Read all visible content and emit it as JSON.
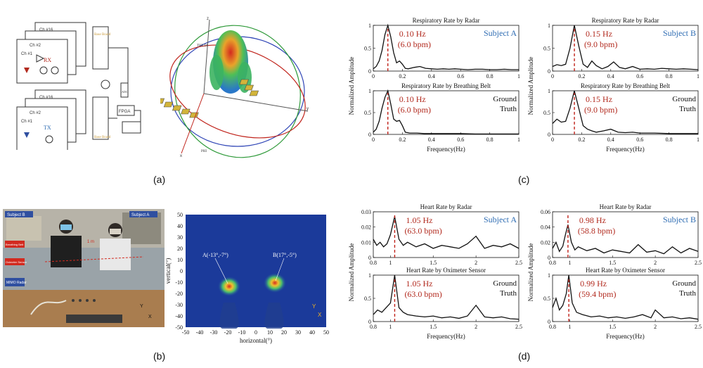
{
  "labels": {
    "a": "(a)",
    "b": "(b)",
    "c": "(c)",
    "d": "(d)"
  },
  "diagram_a": {
    "rx_label": "RX",
    "tx_label": "TX",
    "ch_top": "Ch #16",
    "ch_2": "Ch #2",
    "ch_1": "Ch #1",
    "base_board": "Base Board",
    "fpga": "FPGA",
    "adc": "ADC",
    "antenna_labels": {
      "z": "z",
      "x": "x",
      "y": "y",
      "theta": "THETA",
      "phi": "PHI"
    }
  },
  "photo_b": {
    "subject_b_tag": "Subject B",
    "subject_a_tag": "Subject A",
    "breathing_belt": "Breathing Belt",
    "oximeter": "Oximeter Sensor",
    "mimo": "MIMO Radar",
    "distance": "1 m",
    "axis_y": "Y",
    "axis_x": "X"
  },
  "heatmap_b": {
    "xlabel": "horizontal(°)",
    "ylabel": "vertical(°)",
    "x_ticks": [
      "-50",
      "-40",
      "-30",
      "-20",
      "-10",
      "0",
      "10",
      "20",
      "30",
      "40",
      "50"
    ],
    "y_ticks": [
      "50",
      "40",
      "30",
      "20",
      "10",
      "0",
      "-10",
      "-20",
      "-30",
      "-40",
      "-50"
    ],
    "point_a": "A(-13°,-7°)",
    "point_b": "B(17°,-5°)",
    "axis_y": "Y",
    "axis_x": "X"
  },
  "shared": {
    "ylabel": "Normalized Amplitude",
    "xlabel": "Frequency(Hz)",
    "subject_a": "Subject A",
    "subject_b": "Subject B",
    "ground": "Ground",
    "truth": "Truth"
  },
  "colors": {
    "signal": "#111111",
    "marker": "#c0231b",
    "annotation": "#b22a1e",
    "subject": "#2f6db3"
  },
  "chart_data": [
    {
      "type": "line",
      "title": "Respiratory Rate by Radar",
      "xlim": [
        0,
        1
      ],
      "ylim": [
        0,
        1
      ],
      "xticks": [
        0,
        0.2,
        0.4,
        0.6,
        0.8,
        1
      ],
      "xtick_labels": [
        "0",
        "0.2",
        "0.4",
        "0.6",
        "0.8",
        "1"
      ],
      "yticks": [
        0,
        0.5,
        1
      ],
      "ytick_labels": [
        "0",
        "0.5",
        "1"
      ],
      "peak_x": 0.1,
      "annotation_line1": "0.10 Hz",
      "annotation_line2": "(6.0 bpm)",
      "tag": "Subject A",
      "x": [
        0,
        0.02,
        0.04,
        0.06,
        0.08,
        0.1,
        0.12,
        0.14,
        0.16,
        0.18,
        0.2,
        0.22,
        0.24,
        0.28,
        0.32,
        0.36,
        0.4,
        0.44,
        0.48,
        0.52,
        0.56,
        0.6,
        0.65,
        0.7,
        0.75,
        0.8,
        0.85,
        0.9,
        0.95,
        1
      ],
      "y": [
        0.05,
        0.1,
        0.22,
        0.45,
        0.8,
        1,
        0.75,
        0.4,
        0.18,
        0.22,
        0.15,
        0.06,
        0.05,
        0.08,
        0.1,
        0.06,
        0.05,
        0.04,
        0.05,
        0.04,
        0.05,
        0.04,
        0.03,
        0.04,
        0.04,
        0.03,
        0.03,
        0.04,
        0.03,
        0.03
      ]
    },
    {
      "type": "line",
      "title": "Respiratory Rate by Radar",
      "xlim": [
        0,
        1
      ],
      "ylim": [
        0,
        1
      ],
      "xticks": [
        0,
        0.2,
        0.4,
        0.6,
        0.8,
        1
      ],
      "xtick_labels": [
        "0",
        "0.2",
        "0.4",
        "0.6",
        "0.8",
        "1"
      ],
      "yticks": [
        0,
        0.5,
        1
      ],
      "ytick_labels": [
        "0",
        "0.5",
        "1"
      ],
      "peak_x": 0.15,
      "annotation_line1": "0.15 Hz",
      "annotation_line2": "(9.0 bpm)",
      "tag": "Subject B",
      "x": [
        0,
        0.03,
        0.06,
        0.09,
        0.12,
        0.15,
        0.18,
        0.21,
        0.24,
        0.27,
        0.3,
        0.34,
        0.38,
        0.42,
        0.46,
        0.5,
        0.55,
        0.6,
        0.65,
        0.7,
        0.75,
        0.8,
        0.85,
        0.9,
        0.95,
        1
      ],
      "y": [
        0.1,
        0.14,
        0.12,
        0.15,
        0.5,
        1,
        0.55,
        0.15,
        0.08,
        0.22,
        0.12,
        0.05,
        0.1,
        0.2,
        0.08,
        0.05,
        0.1,
        0.04,
        0.05,
        0.04,
        0.06,
        0.05,
        0.04,
        0.05,
        0.04,
        0.03
      ]
    },
    {
      "type": "line",
      "title": "Respiratory Rate by Breathing Belt",
      "xlim": [
        0,
        1
      ],
      "ylim": [
        0,
        1
      ],
      "xticks": [
        0,
        0.2,
        0.4,
        0.6,
        0.8,
        1
      ],
      "xtick_labels": [
        "0",
        "0.2",
        "0.4",
        "0.6",
        "0.8",
        "1"
      ],
      "yticks": [
        0,
        0.5,
        1
      ],
      "ytick_labels": [
        "0",
        "0.5",
        "1"
      ],
      "peak_x": 0.1,
      "annotation_line1": "0.10 Hz",
      "annotation_line2": "(6.0 bpm)",
      "tag": "Ground Truth",
      "x": [
        0,
        0.02,
        0.04,
        0.06,
        0.08,
        0.1,
        0.12,
        0.14,
        0.16,
        0.18,
        0.2,
        0.22,
        0.25,
        0.3,
        0.35,
        0.4,
        0.45,
        0.5,
        0.6,
        0.7,
        0.8,
        0.9,
        1
      ],
      "y": [
        0.05,
        0.12,
        0.3,
        0.6,
        0.85,
        1,
        0.7,
        0.35,
        0.3,
        0.32,
        0.2,
        0.05,
        0.03,
        0.03,
        0.02,
        0.02,
        0.02,
        0.02,
        0.02,
        0.01,
        0.01,
        0.01,
        0.01
      ]
    },
    {
      "type": "line",
      "title": "Respiratory Rate by Breathing Belt",
      "xlim": [
        0,
        1
      ],
      "ylim": [
        0,
        1
      ],
      "xticks": [
        0,
        0.2,
        0.4,
        0.6,
        0.8,
        1
      ],
      "xtick_labels": [
        "0",
        "0.2",
        "0.4",
        "0.6",
        "0.8",
        "1"
      ],
      "yticks": [
        0,
        0.5,
        1
      ],
      "ytick_labels": [
        "0",
        "0.5",
        "1"
      ],
      "peak_x": 0.15,
      "annotation_line1": "0.15 Hz",
      "annotation_line2": "(9.0 bpm)",
      "tag": "Ground Truth",
      "x": [
        0,
        0.03,
        0.06,
        0.09,
        0.12,
        0.15,
        0.18,
        0.21,
        0.24,
        0.27,
        0.3,
        0.35,
        0.4,
        0.45,
        0.5,
        0.55,
        0.6,
        0.7,
        0.8,
        0.9,
        1
      ],
      "y": [
        0.25,
        0.35,
        0.28,
        0.3,
        0.6,
        1,
        0.6,
        0.2,
        0.12,
        0.08,
        0.05,
        0.08,
        0.12,
        0.05,
        0.04,
        0.05,
        0.03,
        0.03,
        0.02,
        0.02,
        0.02
      ]
    },
    {
      "type": "line",
      "title": "Heart Rate by Radar",
      "xlim": [
        0.8,
        2.5
      ],
      "ylim": [
        0,
        0.03
      ],
      "xticks": [
        0.8,
        1,
        1.5,
        2,
        2.5
      ],
      "xtick_labels": [
        "0.8",
        "1",
        "1.5",
        "2",
        "2.5"
      ],
      "yticks": [
        0,
        0.01,
        0.02,
        0.03
      ],
      "ytick_labels": [
        "0",
        "0.01",
        "0.02",
        "0.03"
      ],
      "peak_x": 1.05,
      "annotation_line1": "1.05 Hz",
      "annotation_line2": "(63.0 bpm)",
      "tag": "Subject A",
      "x": [
        0.8,
        0.84,
        0.88,
        0.92,
        0.96,
        1,
        1.05,
        1.1,
        1.15,
        1.2,
        1.3,
        1.4,
        1.5,
        1.6,
        1.7,
        1.8,
        1.9,
        2,
        2.1,
        2.2,
        2.3,
        2.4,
        2.5
      ],
      "y": [
        0.012,
        0.008,
        0.01,
        0.007,
        0.009,
        0.015,
        0.027,
        0.012,
        0.008,
        0.01,
        0.007,
        0.009,
        0.006,
        0.008,
        0.007,
        0.006,
        0.009,
        0.014,
        0.006,
        0.008,
        0.007,
        0.009,
        0.006
      ]
    },
    {
      "type": "line",
      "title": "Heart Rate by Radar",
      "xlim": [
        0.8,
        2.5
      ],
      "ylim": [
        0,
        0.06
      ],
      "xticks": [
        0.8,
        1,
        1.5,
        2,
        2.5
      ],
      "xtick_labels": [
        "0.8",
        "1",
        "1.5",
        "2",
        "2.5"
      ],
      "yticks": [
        0,
        0.02,
        0.04,
        0.06
      ],
      "ytick_labels": [
        "0",
        "0.02",
        "0.04",
        "0.06"
      ],
      "peak_x": 0.98,
      "annotation_line1": "0.98 Hz",
      "annotation_line2": "(58.8 bpm)",
      "tag": "Subject B",
      "x": [
        0.8,
        0.84,
        0.88,
        0.92,
        0.95,
        0.98,
        1.02,
        1.06,
        1.1,
        1.2,
        1.3,
        1.4,
        1.5,
        1.6,
        1.7,
        1.8,
        1.9,
        2,
        2.1,
        2.2,
        2.3,
        2.4,
        2.5
      ],
      "y": [
        0.012,
        0.02,
        0.008,
        0.015,
        0.03,
        0.043,
        0.02,
        0.01,
        0.014,
        0.009,
        0.012,
        0.006,
        0.01,
        0.008,
        0.006,
        0.017,
        0.007,
        0.009,
        0.005,
        0.014,
        0.006,
        0.012,
        0.008
      ]
    },
    {
      "type": "line",
      "title": "Heart Rate by Oximeter Sensor",
      "xlim": [
        0.8,
        2.5
      ],
      "ylim": [
        0,
        1
      ],
      "xticks": [
        0.8,
        1,
        1.5,
        2,
        2.5
      ],
      "xtick_labels": [
        "0.8",
        "1",
        "1.5",
        "2",
        "2.5"
      ],
      "yticks": [
        0,
        0.5,
        1
      ],
      "ytick_labels": [
        "0",
        "0.5",
        "1"
      ],
      "peak_x": 1.05,
      "annotation_line1": "1.05 Hz",
      "annotation_line2": "(63.0 bpm)",
      "tag": "Ground Truth",
      "x": [
        0.8,
        0.85,
        0.9,
        0.95,
        1,
        1.05,
        1.1,
        1.15,
        1.2,
        1.3,
        1.4,
        1.5,
        1.6,
        1.7,
        1.8,
        1.9,
        2,
        2.1,
        2.2,
        2.3,
        2.4,
        2.5
      ],
      "y": [
        0.15,
        0.25,
        0.2,
        0.3,
        0.4,
        1,
        0.3,
        0.2,
        0.15,
        0.12,
        0.1,
        0.12,
        0.08,
        0.1,
        0.07,
        0.12,
        0.35,
        0.1,
        0.08,
        0.1,
        0.06,
        0.05
      ]
    },
    {
      "type": "line",
      "title": "Heart Rate by Oximeter Sensor",
      "xlim": [
        0.8,
        2.5
      ],
      "ylim": [
        0,
        1
      ],
      "xticks": [
        0.8,
        1,
        1.5,
        2,
        2.5
      ],
      "xtick_labels": [
        "0.8",
        "1",
        "1.5",
        "2",
        "2.5"
      ],
      "yticks": [
        0,
        0.5,
        1
      ],
      "ytick_labels": [
        "0",
        "0.5",
        "1"
      ],
      "peak_x": 0.99,
      "annotation_line1": "0.99 Hz",
      "annotation_line2": "(59.4 bpm)",
      "tag": "Ground Truth",
      "x": [
        0.8,
        0.84,
        0.88,
        0.92,
        0.96,
        0.99,
        1.03,
        1.08,
        1.15,
        1.25,
        1.35,
        1.45,
        1.55,
        1.65,
        1.75,
        1.85,
        1.95,
        2,
        2.1,
        2.2,
        2.3,
        2.4,
        2.5
      ],
      "y": [
        0.3,
        0.5,
        0.25,
        0.35,
        0.6,
        1,
        0.4,
        0.2,
        0.15,
        0.1,
        0.12,
        0.08,
        0.1,
        0.07,
        0.1,
        0.15,
        0.08,
        0.25,
        0.08,
        0.1,
        0.06,
        0.08,
        0.05
      ]
    }
  ]
}
